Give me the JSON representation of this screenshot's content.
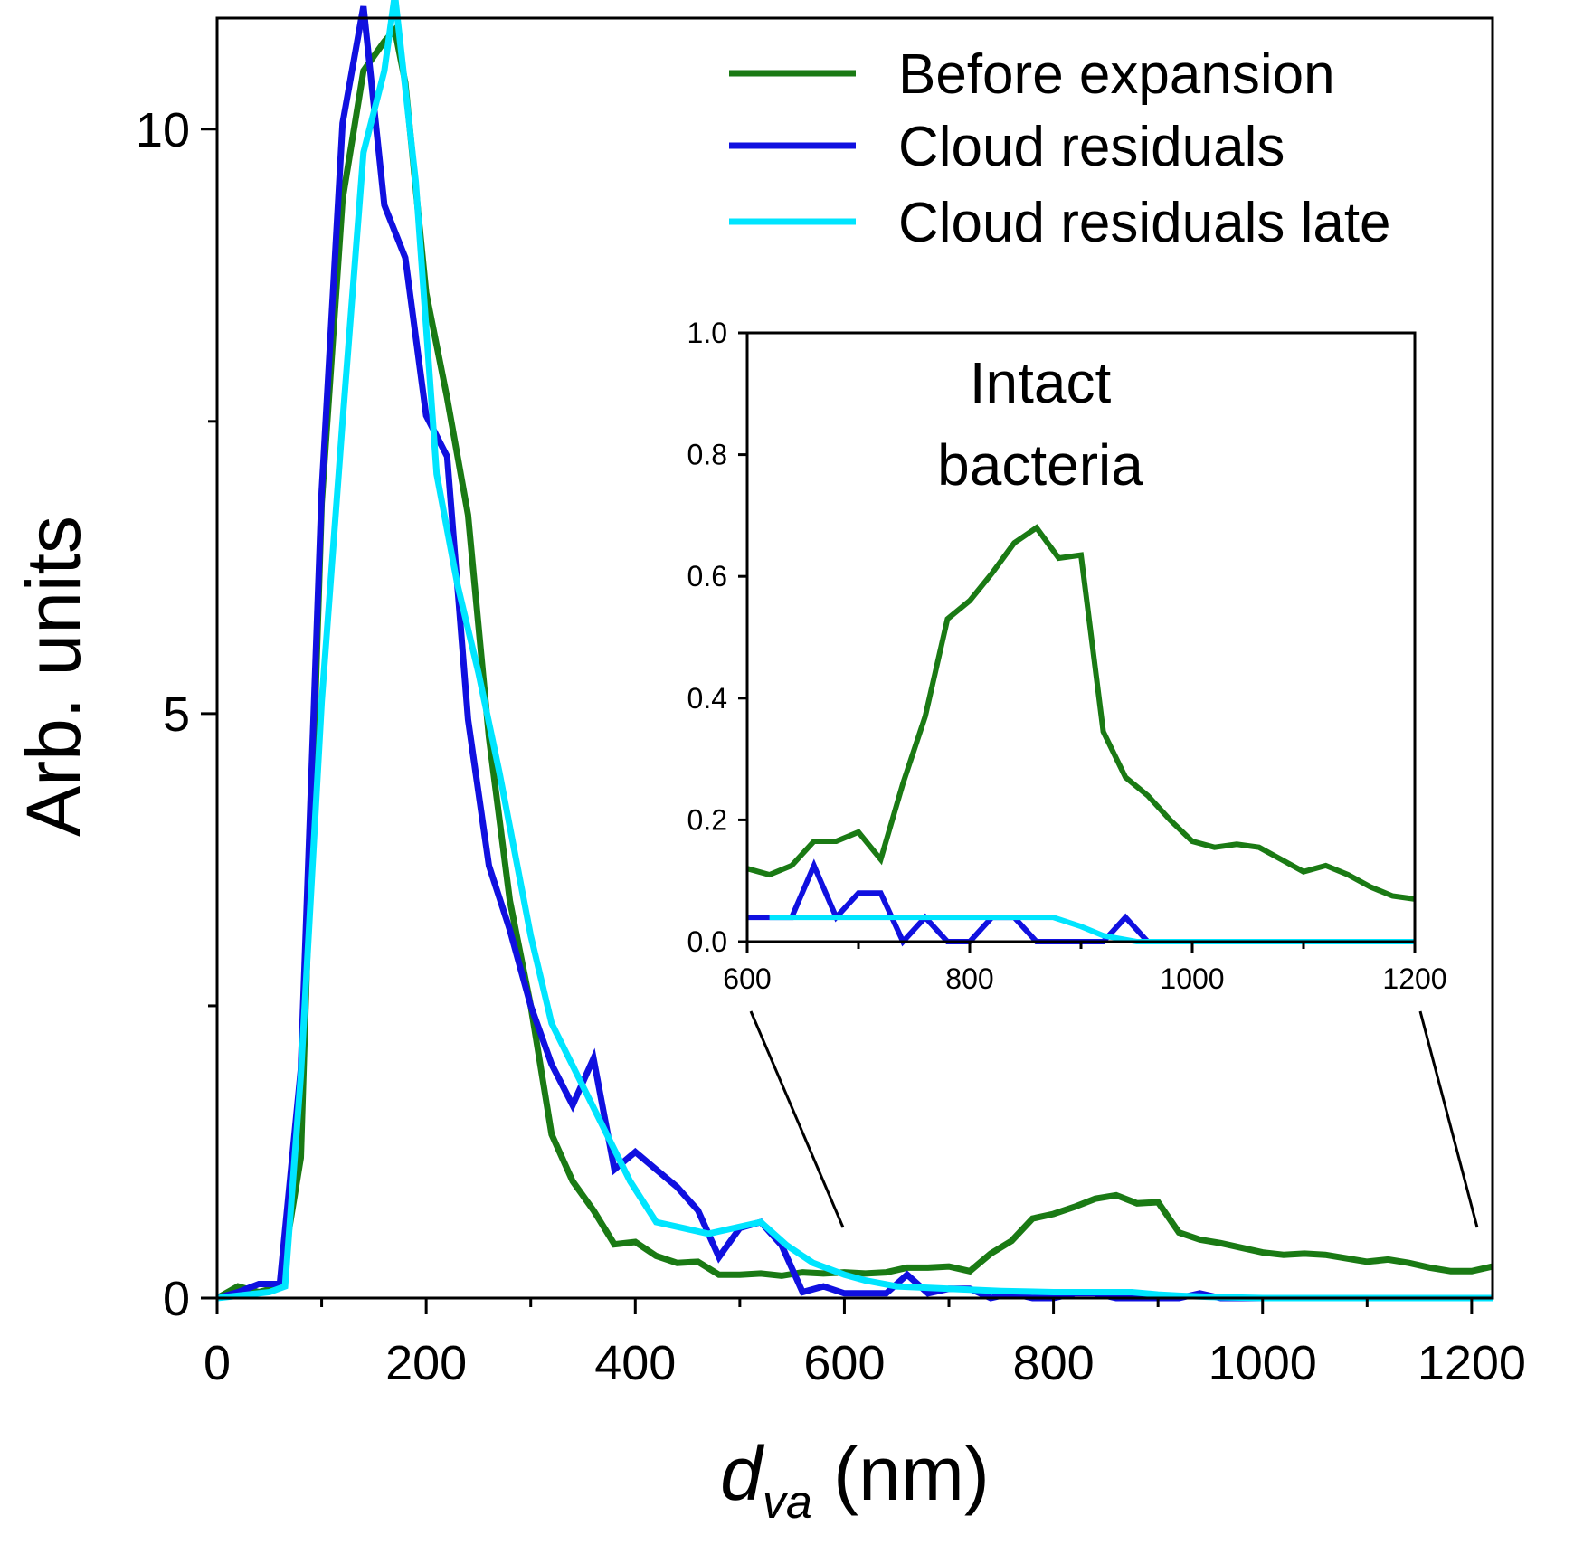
{
  "chart_data": [
    {
      "type": "line",
      "ylabel": "Arb. units",
      "xlabel": {
        "main": "d",
        "sub": "va",
        "unit": " (nm)"
      },
      "xlim": [
        0,
        1220
      ],
      "ylim": [
        0,
        10.95
      ],
      "xticks": [
        0,
        200,
        400,
        600,
        800,
        1000,
        1200
      ],
      "xtick_labels": [
        "0",
        "200",
        "400",
        "600",
        "800",
        "1000",
        "1200"
      ],
      "xminor": [
        100,
        300,
        500,
        700,
        900,
        1100
      ],
      "yticks": [
        0,
        5,
        10
      ],
      "ytick_labels": [
        "0",
        "5",
        "10"
      ],
      "yminor": [
        2.5,
        7.5
      ],
      "legend": {
        "position": "top-right",
        "entries": [
          "Before expansion",
          "Cloud residuals",
          "Cloud residuals late"
        ]
      },
      "series": [
        {
          "name": "Before expansion",
          "color": "#1a7a14",
          "x": [
            0,
            20,
            40,
            60,
            80,
            100,
            120,
            140,
            160,
            170,
            180,
            200,
            220,
            240,
            260,
            280,
            300,
            320,
            340,
            360,
            380,
            400,
            420,
            440,
            460,
            480,
            500,
            520,
            540,
            560,
            580,
            600,
            620,
            640,
            660,
            680,
            700,
            720,
            740,
            760,
            780,
            800,
            820,
            840,
            860,
            880,
            900,
            920,
            940,
            960,
            980,
            1000,
            1020,
            1040,
            1060,
            1080,
            1100,
            1120,
            1140,
            1160,
            1180,
            1200,
            1220
          ],
          "values": [
            0.0,
            0.1,
            0.05,
            0.1,
            1.2,
            6.8,
            9.4,
            10.5,
            10.75,
            10.85,
            10.4,
            8.6,
            7.7,
            6.7,
            4.8,
            3.4,
            2.5,
            1.4,
            1.0,
            0.75,
            0.46,
            0.48,
            0.36,
            0.3,
            0.31,
            0.2,
            0.2,
            0.21,
            0.19,
            0.22,
            0.21,
            0.22,
            0.21,
            0.22,
            0.26,
            0.26,
            0.27,
            0.23,
            0.38,
            0.49,
            0.68,
            0.72,
            0.78,
            0.85,
            0.88,
            0.81,
            0.82,
            0.56,
            0.5,
            0.47,
            0.43,
            0.39,
            0.37,
            0.38,
            0.37,
            0.34,
            0.31,
            0.33,
            0.3,
            0.26,
            0.23,
            0.23,
            0.27
          ]
        },
        {
          "name": "Cloud residuals",
          "color": "#1010e0",
          "x": [
            0,
            20,
            40,
            60,
            80,
            100,
            120,
            140,
            160,
            180,
            200,
            220,
            240,
            260,
            280,
            300,
            320,
            340,
            360,
            380,
            400,
            420,
            440,
            460,
            480,
            500,
            520,
            540,
            560,
            580,
            600,
            620,
            640,
            660,
            680,
            700,
            720,
            740,
            760,
            780,
            800,
            820,
            840,
            860,
            880,
            900,
            920,
            940,
            960,
            980,
            1000,
            1050,
            1100,
            1150,
            1200,
            1220
          ],
          "values": [
            0.0,
            0.05,
            0.12,
            0.12,
            1.95,
            6.9,
            10.05,
            11.05,
            9.35,
            8.9,
            7.55,
            7.2,
            4.95,
            3.7,
            3.15,
            2.5,
            2.0,
            1.65,
            2.05,
            1.1,
            1.25,
            1.1,
            0.95,
            0.75,
            0.35,
            0.6,
            0.65,
            0.45,
            0.05,
            0.1,
            0.04,
            0.04,
            0.04,
            0.2,
            0.04,
            0.08,
            0.08,
            0.0,
            0.04,
            0.0,
            0.0,
            0.04,
            0.04,
            0.0,
            0.0,
            0.0,
            0.0,
            0.04,
            0.0,
            0.0,
            0.0,
            0.0,
            0.0,
            0.0,
            0.0,
            0.0
          ]
        },
        {
          "name": "Cloud residuals late",
          "color": "#00e5ff",
          "x": [
            0,
            50,
            65,
            80,
            100,
            120,
            140,
            160,
            170,
            190,
            210,
            230,
            250,
            270,
            300,
            320,
            345,
            370,
            395,
            420,
            470,
            520,
            545,
            570,
            600,
            620,
            650,
            700,
            750,
            800,
            850,
            875,
            900,
            920,
            950,
            1000,
            1100,
            1200,
            1220
          ],
          "values": [
            0.0,
            0.05,
            0.1,
            1.9,
            5.1,
            7.5,
            9.8,
            10.5,
            11.15,
            9.55,
            7.05,
            6.1,
            5.35,
            4.5,
            3.1,
            2.35,
            1.9,
            1.45,
            1.0,
            0.65,
            0.55,
            0.65,
            0.45,
            0.3,
            0.2,
            0.15,
            0.1,
            0.08,
            0.06,
            0.05,
            0.05,
            0.05,
            0.03,
            0.02,
            0.01,
            0.0,
            0.0,
            0.0,
            0.0
          ]
        }
      ]
    },
    {
      "type": "line",
      "title": "Intact bacteria",
      "title_lines": [
        "Intact",
        "bacteria"
      ],
      "xlim": [
        600,
        1200
      ],
      "ylim": [
        0,
        1.0
      ],
      "xticks": [
        600,
        800,
        1000,
        1200
      ],
      "xtick_labels": [
        "600",
        "800",
        "1000",
        "1200"
      ],
      "xminor": [
        700,
        900,
        1100
      ],
      "yticks": [
        0,
        0.2,
        0.4,
        0.6,
        0.8,
        1.0
      ],
      "ytick_labels": [
        "0.0",
        "0.2",
        "0.4",
        "0.6",
        "0.8",
        "1.0"
      ],
      "series": [
        {
          "name": "Before expansion",
          "color": "#1a7a14",
          "x": [
            600,
            620,
            640,
            660,
            680,
            700,
            720,
            740,
            760,
            780,
            800,
            820,
            840,
            860,
            880,
            900,
            920,
            940,
            960,
            980,
            1000,
            1020,
            1040,
            1060,
            1080,
            1100,
            1120,
            1140,
            1160,
            1180,
            1200
          ],
          "values": [
            0.12,
            0.11,
            0.125,
            0.165,
            0.165,
            0.18,
            0.135,
            0.26,
            0.37,
            0.53,
            0.56,
            0.605,
            0.655,
            0.68,
            0.63,
            0.635,
            0.345,
            0.27,
            0.24,
            0.2,
            0.165,
            0.155,
            0.16,
            0.155,
            0.135,
            0.115,
            0.125,
            0.11,
            0.09,
            0.075,
            0.07
          ]
        },
        {
          "name": "Cloud residuals",
          "color": "#1010e0",
          "x": [
            600,
            620,
            640,
            660,
            680,
            700,
            720,
            740,
            760,
            780,
            800,
            820,
            840,
            860,
            880,
            900,
            920,
            940,
            960,
            1000,
            1100,
            1200
          ],
          "values": [
            0.04,
            0.04,
            0.04,
            0.125,
            0.04,
            0.08,
            0.08,
            0.0,
            0.04,
            0.0,
            0.0,
            0.04,
            0.04,
            0.0,
            0.0,
            0.0,
            0.0,
            0.04,
            0.0,
            0.0,
            0.0,
            0.0
          ]
        },
        {
          "name": "Cloud residuals late",
          "color": "#00e5ff",
          "x": [
            620,
            700,
            800,
            850,
            875,
            900,
            920,
            950,
            1000,
            1100,
            1200
          ],
          "values": [
            0.04,
            0.04,
            0.04,
            0.04,
            0.04,
            0.025,
            0.01,
            0.0,
            0.0,
            0.0,
            0.0
          ]
        }
      ]
    }
  ]
}
